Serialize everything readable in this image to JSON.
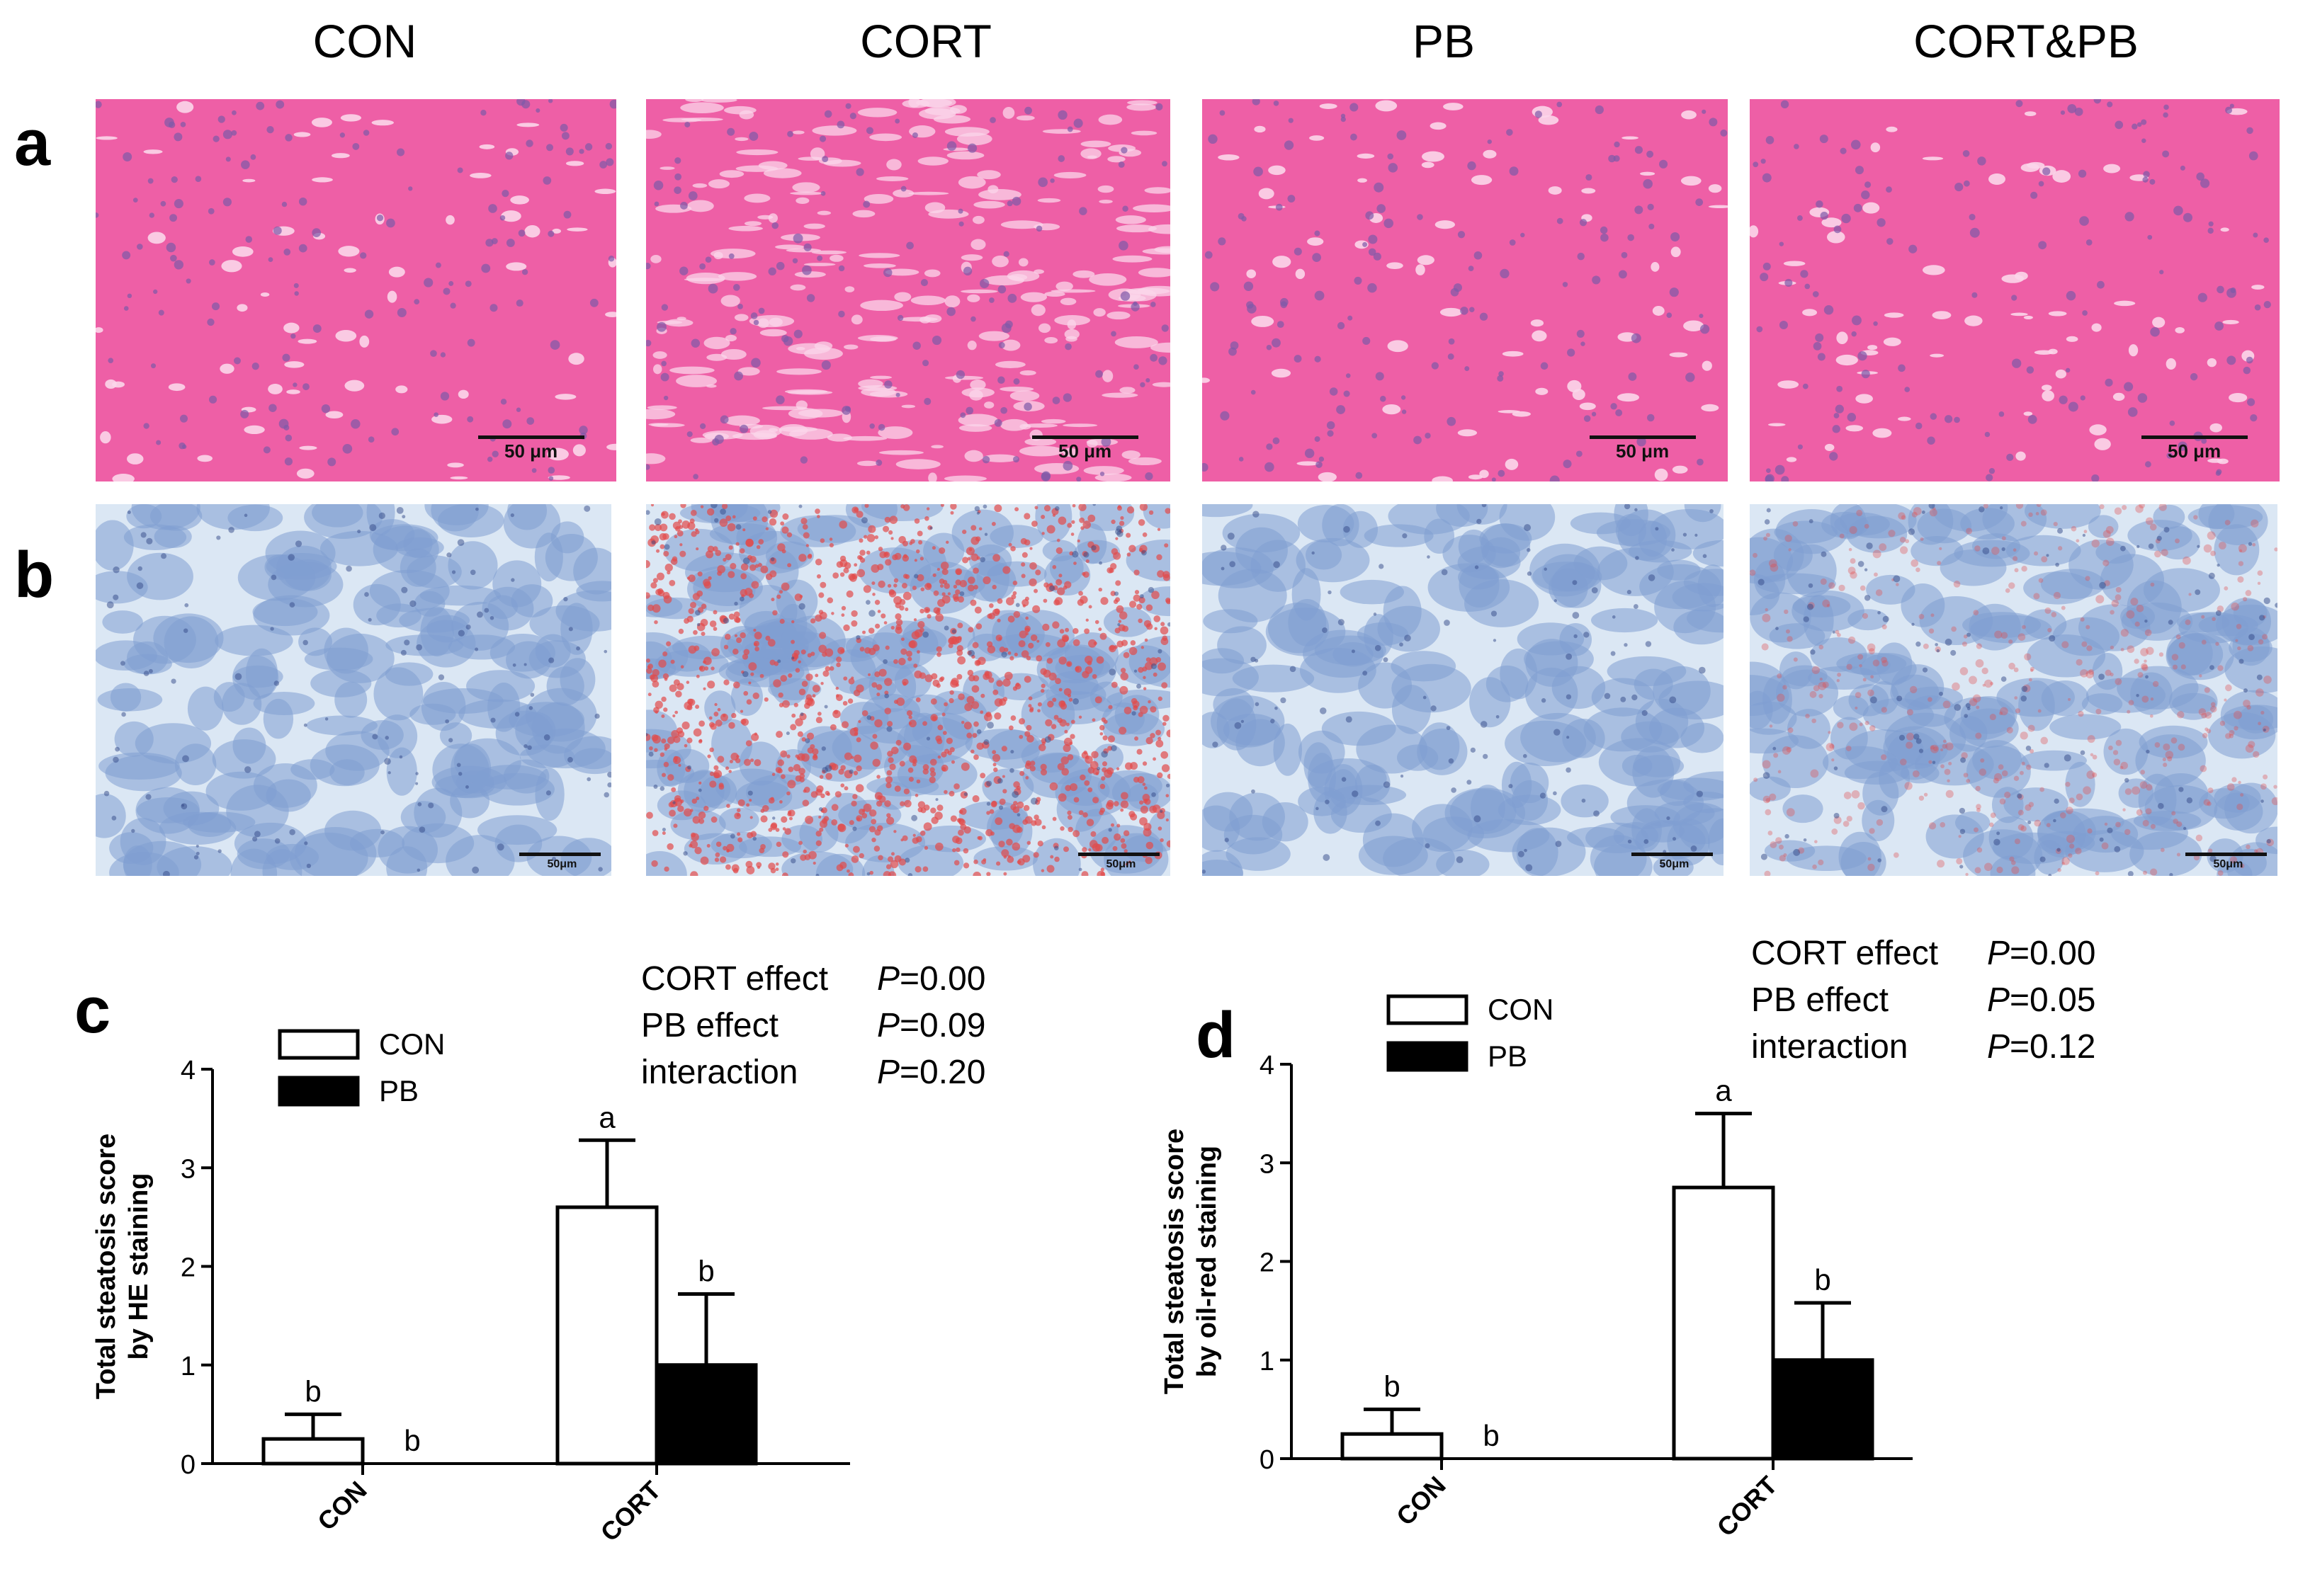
{
  "groups": [
    "CON",
    "CORT",
    "PB",
    "CORT&PB"
  ],
  "rows": {
    "a": {
      "label": "a",
      "scale_text": "50 μm",
      "stain_colors": {
        "base": "#ee5fa6",
        "nucleus": "#7e5aa8",
        "gap": "#fbd6ea"
      }
    },
    "b": {
      "label": "b",
      "scale_text": "50μm",
      "stain_colors": {
        "base": "#7f9fd2",
        "background": "#dbe7f4",
        "lipid": "#e24a4a"
      }
    }
  },
  "chart_data": [
    {
      "panel": "c",
      "type": "bar",
      "ylabel": "Total steatosis score by HE staining",
      "ylim": [
        0,
        4
      ],
      "yticks": [
        "0",
        "1",
        "2",
        "3",
        "4"
      ],
      "categories": [
        "CON",
        "CORT"
      ],
      "legend": {
        "placement": "top-left",
        "entries": [
          {
            "name": "CON",
            "color": "#ffffff"
          },
          {
            "name": "PB",
            "color": "#000000"
          }
        ]
      },
      "series": [
        {
          "name": "CON",
          "fill": "#ffffff",
          "values": [
            0.25,
            2.6
          ],
          "errors": [
            0.25,
            0.68
          ],
          "letters": [
            "b",
            "a"
          ]
        },
        {
          "name": "PB",
          "fill": "#000000",
          "values": [
            0.0,
            1.0
          ],
          "errors": [
            0.0,
            0.72
          ],
          "letters": [
            "b",
            "b"
          ]
        }
      ],
      "stats": [
        {
          "label": "CORT effect",
          "p_prefix": "P",
          "p_value": "=0.00"
        },
        {
          "label": "PB effect",
          "p_prefix": "P",
          "p_value": "=0.09"
        },
        {
          "label": "interaction",
          "p_prefix": "P",
          "p_value": "=0.20"
        }
      ]
    },
    {
      "panel": "d",
      "type": "bar",
      "ylabel": "Total steatosis score by oil-red staining",
      "ylim": [
        0,
        4
      ],
      "yticks": [
        "0",
        "1",
        "2",
        "3",
        "4"
      ],
      "categories": [
        "CON",
        "CORT"
      ],
      "legend": {
        "placement": "top-left",
        "entries": [
          {
            "name": "CON",
            "color": "#ffffff"
          },
          {
            "name": "PB",
            "color": "#000000"
          }
        ]
      },
      "series": [
        {
          "name": "CON",
          "fill": "#ffffff",
          "values": [
            0.25,
            2.75
          ],
          "errors": [
            0.25,
            0.75
          ],
          "letters": [
            "b",
            "a"
          ]
        },
        {
          "name": "PB",
          "fill": "#000000",
          "values": [
            0.0,
            1.0
          ],
          "errors": [
            0.0,
            0.58
          ],
          "letters": [
            "b",
            "b"
          ]
        }
      ],
      "stats": [
        {
          "label": "CORT effect",
          "p_prefix": "P",
          "p_value": "=0.00"
        },
        {
          "label": "PB effect",
          "p_prefix": "P",
          "p_value": "=0.05"
        },
        {
          "label": "interaction",
          "p_prefix": "P",
          "p_value": "=0.12"
        }
      ]
    }
  ]
}
